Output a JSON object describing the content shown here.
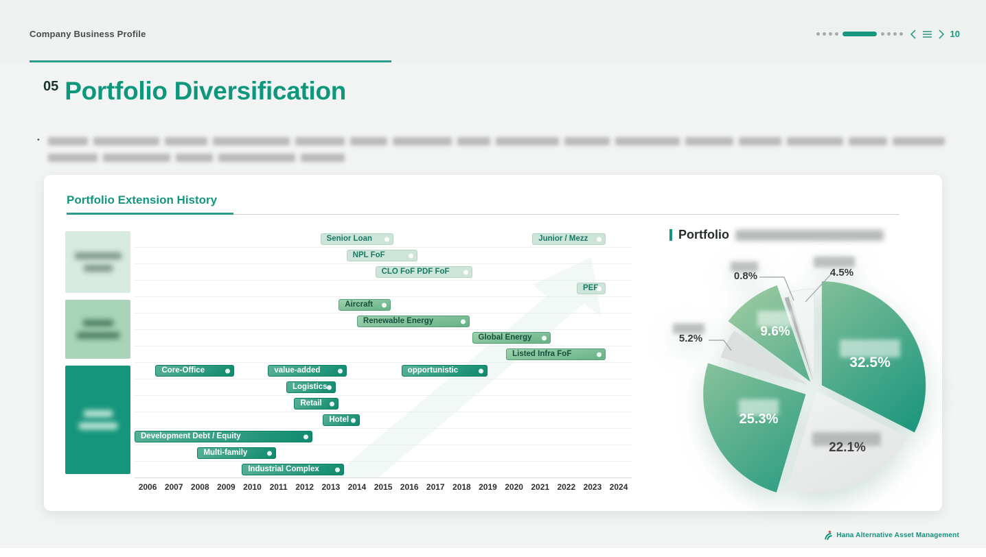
{
  "header": {
    "breadcrumb": "Company Business Profile",
    "page_number": "10",
    "left_dots": 4,
    "right_dots": 4
  },
  "title": {
    "number": "05",
    "text": "Portfolio Diversification"
  },
  "bullet": {
    "marker": "•",
    "text_redacted": true,
    "lines": 2
  },
  "card": {
    "section_title": "Portfolio Extension History"
  },
  "pie_header": {
    "title": "Portfolio",
    "subtitle_redacted": true
  },
  "footer": {
    "logo_text": "Hana Alternative Asset Management"
  },
  "colors": {
    "brand_teal": "#12967E",
    "underline_teal": "#2A9C8B",
    "tier_light_bg": "#CDE5D9",
    "tier_medium_from": "#9ED1AE",
    "tier_medium_to": "#66B287",
    "tier_dark_from": "#57B197",
    "tier_dark_to": "#0E8A6E",
    "block_light": "#D8EBE0",
    "block_medium": "#A8D4B7",
    "block_dark": "#15957B",
    "pie_green_light": "#A6CEA3",
    "pie_green_dark": "#0C9078",
    "pie_gray_light": "#EAEDEC",
    "pie_gray_mid": "#DCDFDE",
    "pie_gray_dark": "#B0B4B3",
    "pie_white": "#F4F6F5"
  },
  "chart_data": [
    {
      "type": "bar",
      "variant": "gantt-timeline",
      "title": "Portfolio Extension History",
      "x_axis": {
        "min": 2005.5,
        "max": 2024.5,
        "tick_labels": [
          "2006",
          "2007",
          "2008",
          "2009",
          "2010",
          "2011",
          "2012",
          "2013",
          "2014",
          "2015",
          "2016",
          "2017",
          "2018",
          "2019",
          "2020",
          "2021",
          "2022",
          "2023",
          "2024"
        ]
      },
      "row_count": 15,
      "grid": true,
      "category_blocks": [
        {
          "label_redacted": true,
          "rows": [
            0,
            3
          ],
          "tier": "light"
        },
        {
          "label_redacted": true,
          "rows": [
            4,
            7
          ],
          "tier": "medium"
        },
        {
          "label_redacted": true,
          "rows": [
            8,
            14
          ],
          "tier": "dark"
        }
      ],
      "bars": [
        {
          "label": "Senior Loan",
          "row": 0,
          "start": 2012.6,
          "end": 2015.4,
          "tier": "light"
        },
        {
          "label": "Junior / Mezz",
          "row": 0,
          "start": 2020.7,
          "end": 2023.5,
          "tier": "light"
        },
        {
          "label": "NPL FoF",
          "row": 1,
          "start": 2013.6,
          "end": 2016.3,
          "tier": "light"
        },
        {
          "label": "CLO FoF PDF FoF",
          "row": 2,
          "start": 2014.7,
          "end": 2018.4,
          "tier": "light"
        },
        {
          "label": "PEF",
          "row": 3,
          "start": 2022.4,
          "end": 2023.5,
          "tier": "light"
        },
        {
          "label": "Aircraft",
          "row": 4,
          "start": 2013.3,
          "end": 2015.3,
          "tier": "medium"
        },
        {
          "label": "Renewable Energy",
          "row": 5,
          "start": 2014.0,
          "end": 2018.3,
          "tier": "medium"
        },
        {
          "label": "Global Energy",
          "row": 6,
          "start": 2018.4,
          "end": 2021.4,
          "tier": "medium"
        },
        {
          "label": "Listed Infra FoF",
          "row": 7,
          "start": 2019.7,
          "end": 2023.5,
          "tier": "medium"
        },
        {
          "label": "Core-Office",
          "row": 8,
          "start": 2006.3,
          "end": 2009.3,
          "tier": "dark"
        },
        {
          "label": "value-added",
          "row": 8,
          "start": 2010.6,
          "end": 2013.6,
          "tier": "dark"
        },
        {
          "label": "opportunistic",
          "row": 8,
          "start": 2015.7,
          "end": 2019.0,
          "tier": "dark"
        },
        {
          "label": "Logistics",
          "row": 9,
          "start": 2011.3,
          "end": 2013.2,
          "tier": "dark"
        },
        {
          "label": "Retail",
          "row": 10,
          "start": 2011.6,
          "end": 2013.3,
          "tier": "dark"
        },
        {
          "label": "Hotel",
          "row": 11,
          "start": 2012.7,
          "end": 2014.1,
          "tier": "dark"
        },
        {
          "label": "Development Debt / Equity",
          "row": 12,
          "start": 2005.5,
          "end": 2012.3,
          "tier": "dark"
        },
        {
          "label": "Multi-family",
          "row": 13,
          "start": 2007.9,
          "end": 2010.9,
          "tier": "dark"
        },
        {
          "label": "Industrial Complex",
          "row": 14,
          "start": 2009.6,
          "end": 2013.5,
          "tier": "dark"
        }
      ]
    },
    {
      "type": "pie",
      "title": "Portfolio",
      "title_suffix_redacted": true,
      "start_angle_deg": 0,
      "direction": "clockwise",
      "slices": [
        {
          "value": 32.5,
          "label": "32.5%",
          "name_redacted": true,
          "color": "green",
          "label_position": "inside"
        },
        {
          "value": 22.1,
          "label": "22.1%",
          "name_redacted": true,
          "color": "gray_light",
          "label_position": "inside"
        },
        {
          "value": 25.3,
          "label": "25.3%",
          "name_redacted": true,
          "color": "green",
          "label_position": "inside"
        },
        {
          "value": 5.2,
          "label": "5.2%",
          "name_redacted": true,
          "color": "gray_mid",
          "label_position": "outside"
        },
        {
          "value": 9.6,
          "label": "9.6%",
          "name_redacted": true,
          "color": "green",
          "label_position": "inside"
        },
        {
          "value": 0.8,
          "label": "0.8%",
          "name_redacted": true,
          "color": "gray_dark",
          "label_position": "outside"
        },
        {
          "value": 4.5,
          "label": "4.5%",
          "name_redacted": true,
          "color": "white",
          "label_position": "outside"
        }
      ]
    }
  ]
}
